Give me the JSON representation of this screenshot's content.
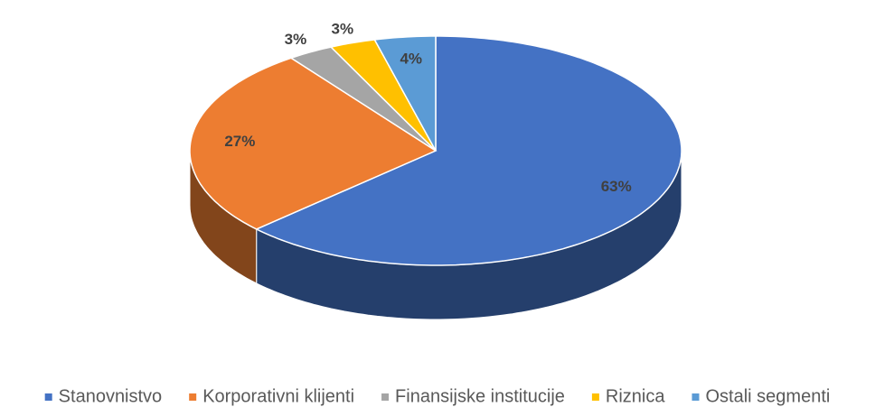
{
  "chart_data": {
    "type": "pie",
    "categories": [
      "Stanovnistvo",
      "Korporativni klijenti",
      "Finansijske institucije",
      "Riznica",
      "Ostali segmenti"
    ],
    "values": [
      63,
      27,
      3,
      3,
      4
    ],
    "value_labels": [
      "63%",
      "27%",
      "3%",
      "3%",
      "4%"
    ],
    "colors": [
      "#4472c4",
      "#ed7d31",
      "#a5a5a5",
      "#ffc000",
      "#5b9bd5"
    ],
    "legend": "bottom"
  }
}
